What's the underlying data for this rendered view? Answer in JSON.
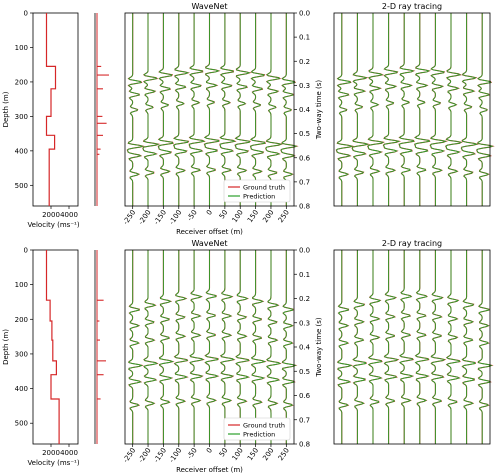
{
  "chart_data": [
    {
      "type": "line",
      "panel": "top",
      "velocity_profile": {
        "xlabel": "Velocity (ms⁻¹)",
        "ylabel": "Depth (m)",
        "xticks": [
          2000,
          4000
        ],
        "xlim": [
          0,
          5000
        ],
        "yticks": [
          0,
          100,
          200,
          300,
          400,
          500
        ],
        "ylim": [
          0,
          560
        ],
        "velocity": [
          1500,
          1500,
          2500,
          2500,
          2000,
          2000,
          1500,
          1500,
          2400,
          2400,
          1800,
          1800
        ],
        "depth": [
          0,
          155,
          155,
          220,
          220,
          300,
          300,
          355,
          355,
          395,
          395,
          560
        ]
      },
      "reflectivity": {
        "depth": [
          155,
          180,
          220,
          300,
          320,
          355,
          395,
          410
        ],
        "spike": [
          0.35,
          1.0,
          0.5,
          0.45,
          0.8,
          0.5,
          0.3,
          0.2
        ]
      },
      "wavenet": {
        "title": "WaveNet",
        "xlabel": "Receiver offset (m)",
        "ylabel": "Two-way time (s)",
        "xticks": [
          -250,
          -200,
          -150,
          -100,
          -50,
          0,
          50,
          100,
          150,
          200,
          250
        ],
        "yticks": [
          0.0,
          0.1,
          0.2,
          0.3,
          0.4,
          0.5,
          0.6,
          0.7,
          0.8
        ],
        "ylim": [
          0,
          0.8
        ],
        "legend": [
          "Ground truth",
          "Prediction"
        ],
        "legend_position": "lower-right",
        "events_t0": [
          0.24,
          0.3,
          0.37,
          0.53,
          0.57,
          0.65
        ],
        "events_amp": [
          0.9,
          0.7,
          0.5,
          1.0,
          0.8,
          0.6
        ]
      },
      "raytracing": {
        "title": "2-D ray tracing",
        "ylim": [
          0,
          0.8
        ],
        "events_t0": [
          0.24,
          0.3,
          0.37,
          0.53,
          0.57,
          0.65
        ],
        "events_amp": [
          0.9,
          0.7,
          0.5,
          1.0,
          0.8,
          0.6
        ]
      },
      "series_colors": {
        "ground_truth": "#d62728",
        "prediction": "#2ca02c"
      }
    },
    {
      "type": "line",
      "panel": "bottom",
      "velocity_profile": {
        "xlabel": "Velocity (ms⁻¹)",
        "ylabel": "Depth (m)",
        "xticks": [
          2000,
          4000
        ],
        "xlim": [
          0,
          5000
        ],
        "yticks": [
          0,
          100,
          200,
          300,
          400,
          500
        ],
        "ylim": [
          0,
          560
        ],
        "velocity": [
          1500,
          1500,
          1900,
          1900,
          2100,
          2100,
          2200,
          2200,
          2600,
          2600,
          2000,
          2000,
          2900,
          2900
        ],
        "depth": [
          0,
          145,
          145,
          205,
          205,
          260,
          260,
          320,
          320,
          360,
          360,
          430,
          430,
          560
        ]
      },
      "reflectivity": {
        "depth": [
          145,
          205,
          260,
          320,
          360,
          430
        ],
        "spike": [
          0.55,
          0.2,
          0.25,
          0.75,
          0.55,
          0.3
        ]
      },
      "wavenet": {
        "title": "WaveNet",
        "xlabel": "Receiver offset (m)",
        "ylabel": "Two-way time (s)",
        "xticks": [
          -250,
          -200,
          -150,
          -100,
          -50,
          0,
          50,
          100,
          150,
          200,
          250
        ],
        "yticks": [
          0.0,
          0.1,
          0.2,
          0.3,
          0.4,
          0.5,
          0.6,
          0.7,
          0.8
        ],
        "ylim": [
          0,
          0.8
        ],
        "legend": [
          "Ground truth",
          "Prediction"
        ],
        "legend_position": "lower-right",
        "events_t0": [
          0.19,
          0.27,
          0.35,
          0.45,
          0.52,
          0.62
        ],
        "events_amp": [
          0.7,
          0.6,
          0.6,
          0.9,
          0.8,
          0.6
        ]
      },
      "raytracing": {
        "title": "2-D ray tracing",
        "ylim": [
          0,
          0.8
        ],
        "events_t0": [
          0.19,
          0.27,
          0.35,
          0.45,
          0.52,
          0.62
        ],
        "events_amp": [
          0.7,
          0.6,
          0.6,
          0.9,
          0.8,
          0.6
        ]
      },
      "series_colors": {
        "ground_truth": "#d62728",
        "prediction": "#2ca02c"
      }
    }
  ]
}
